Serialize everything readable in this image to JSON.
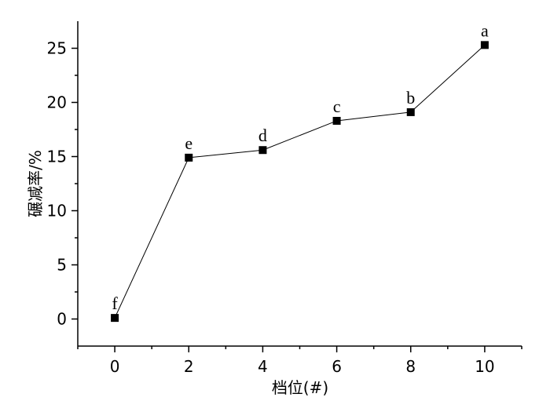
{
  "chart_data": {
    "type": "line",
    "xlabel": "档位(#)",
    "ylabel": "碾减率/%",
    "xlim": [
      -1,
      11
    ],
    "ylim": [
      -2.5,
      27.5
    ],
    "x_ticks": [
      0,
      2,
      4,
      6,
      8,
      10
    ],
    "y_ticks": [
      0,
      5,
      10,
      15,
      20,
      25
    ],
    "grid": false,
    "series": [
      {
        "x": [
          0,
          2,
          4,
          6,
          8,
          10
        ],
        "values": [
          0.1,
          14.9,
          15.6,
          18.3,
          19.1,
          25.3
        ],
        "point_labels": [
          "f",
          "e",
          "d",
          "c",
          "b",
          "a"
        ],
        "marker": "square",
        "color": "#000000"
      }
    ]
  }
}
